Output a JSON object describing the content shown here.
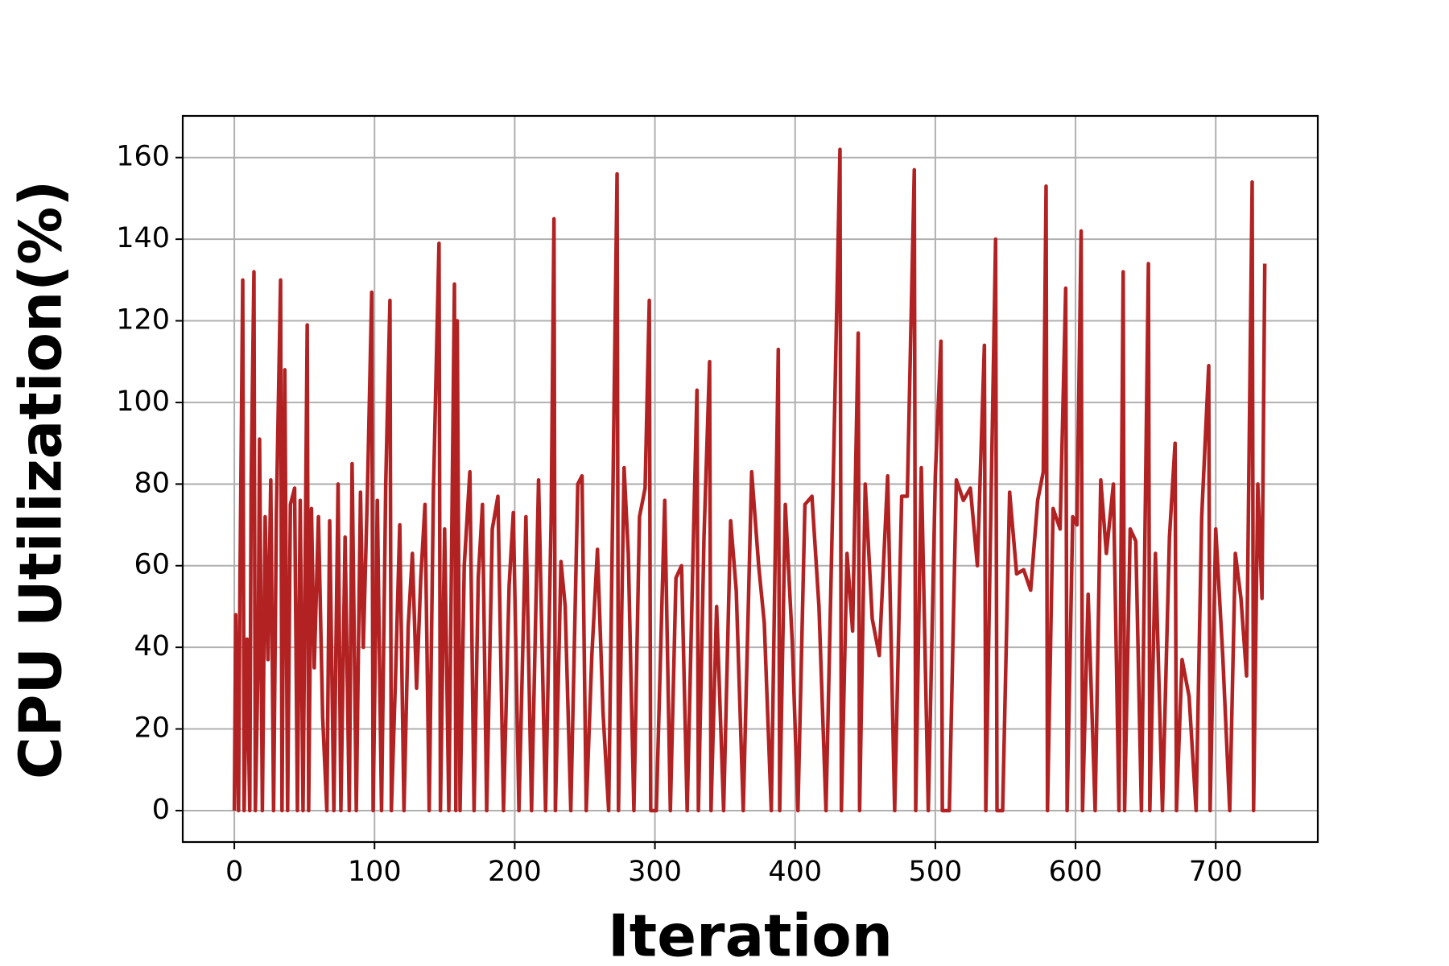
{
  "chart_data": {
    "type": "line",
    "xlabel": "Iteration",
    "ylabel": "CPU Utilization(%)",
    "color": "#b22222",
    "grid": true,
    "xlim": [
      -36.8,
      772.8
    ],
    "ylim": [
      -7.7,
      170.2
    ],
    "xticks": [
      0,
      100,
      200,
      300,
      400,
      500,
      600,
      700
    ],
    "yticks": [
      0,
      20,
      40,
      60,
      80,
      100,
      120,
      140,
      160
    ],
    "x": [
      0,
      1,
      3,
      4,
      6,
      7,
      9,
      11,
      12,
      14,
      15,
      17,
      18,
      20,
      22,
      24,
      26,
      28,
      30,
      33,
      34,
      36,
      38,
      40,
      43,
      45,
      47,
      49,
      52,
      53,
      55,
      57,
      60,
      63,
      66,
      68,
      71,
      74,
      76,
      79,
      82,
      84,
      87,
      90,
      92,
      95,
      98,
      99,
      102,
      105,
      108,
      111,
      112,
      115,
      118,
      121,
      124,
      127,
      130,
      133,
      136,
      139,
      142,
      146,
      147,
      150,
      153,
      157,
      158,
      159,
      161,
      164,
      168,
      171,
      174,
      177,
      180,
      184,
      188,
      192,
      196,
      199,
      203,
      208,
      212,
      217,
      222,
      226,
      228,
      229,
      233,
      236,
      240,
      245,
      248,
      251,
      255,
      259,
      263,
      267,
      270,
      273,
      274,
      278,
      281,
      285,
      289,
      293,
      296,
      297,
      301,
      307,
      311,
      315,
      319,
      323,
      327,
      330,
      331,
      335,
      339,
      340,
      344,
      349,
      354,
      358,
      363,
      369,
      374,
      378,
      383,
      388,
      389,
      393,
      398,
      402,
      407,
      412,
      417,
      422,
      427,
      432,
      433,
      437,
      441,
      445,
      446,
      450,
      455,
      460,
      466,
      471,
      476,
      480,
      485,
      486,
      490,
      495,
      500,
      504,
      505,
      510,
      515,
      520,
      525,
      530,
      535,
      536,
      540,
      543,
      544,
      548,
      553,
      558,
      563,
      568,
      573,
      577,
      579,
      580,
      584,
      589,
      593,
      594,
      598,
      601,
      604,
      605,
      609,
      614,
      618,
      622,
      627,
      631,
      634,
      635,
      639,
      643,
      647,
      652,
      653,
      657,
      662,
      667,
      671,
      672,
      676,
      681,
      686,
      690,
      695,
      696,
      700,
      705,
      710,
      714,
      718,
      722,
      726,
      727,
      730,
      733,
      735
    ],
    "values": [
      0,
      48,
      0,
      55,
      130,
      0,
      42,
      0,
      80,
      132,
      0,
      38,
      91,
      0,
      72,
      37,
      81,
      0,
      73,
      130,
      0,
      108,
      0,
      75,
      79,
      0,
      76,
      0,
      119,
      0,
      74,
      35,
      72,
      23,
      0,
      71,
      0,
      80,
      0,
      67,
      0,
      85,
      0,
      78,
      40,
      79,
      127,
      0,
      76,
      0,
      80,
      125,
      0,
      33,
      70,
      0,
      45,
      63,
      30,
      57,
      75,
      0,
      78,
      139,
      0,
      69,
      0,
      129,
      0,
      120,
      0,
      60,
      83,
      0,
      57,
      75,
      0,
      69,
      77,
      0,
      55,
      73,
      0,
      72,
      0,
      81,
      0,
      72,
      145,
      0,
      61,
      50,
      0,
      80,
      82,
      0,
      38,
      64,
      24,
      0,
      77,
      156,
      0,
      84,
      63,
      0,
      72,
      79,
      125,
      0,
      0,
      76,
      0,
      57,
      60,
      0,
      60,
      103,
      0,
      67,
      110,
      0,
      50,
      0,
      71,
      54,
      0,
      83,
      60,
      46,
      0,
      113,
      0,
      75,
      41,
      0,
      75,
      77,
      50,
      0,
      78,
      162,
      0,
      63,
      44,
      117,
      0,
      80,
      47,
      38,
      82,
      0,
      77,
      77,
      157,
      0,
      84,
      0,
      82,
      115,
      0,
      0,
      81,
      76,
      79,
      60,
      114,
      0,
      81,
      140,
      0,
      0,
      78,
      58,
      59,
      54,
      76,
      83,
      153,
      0,
      74,
      69,
      128,
      0,
      72,
      70,
      142,
      0,
      53,
      0,
      81,
      63,
      80,
      0,
      132,
      0,
      69,
      66,
      0,
      134,
      0,
      63,
      0,
      67,
      90,
      0,
      37,
      28,
      0,
      72,
      109,
      0,
      69,
      38,
      0,
      63,
      52,
      33,
      154,
      0,
      80,
      52,
      134
    ]
  }
}
